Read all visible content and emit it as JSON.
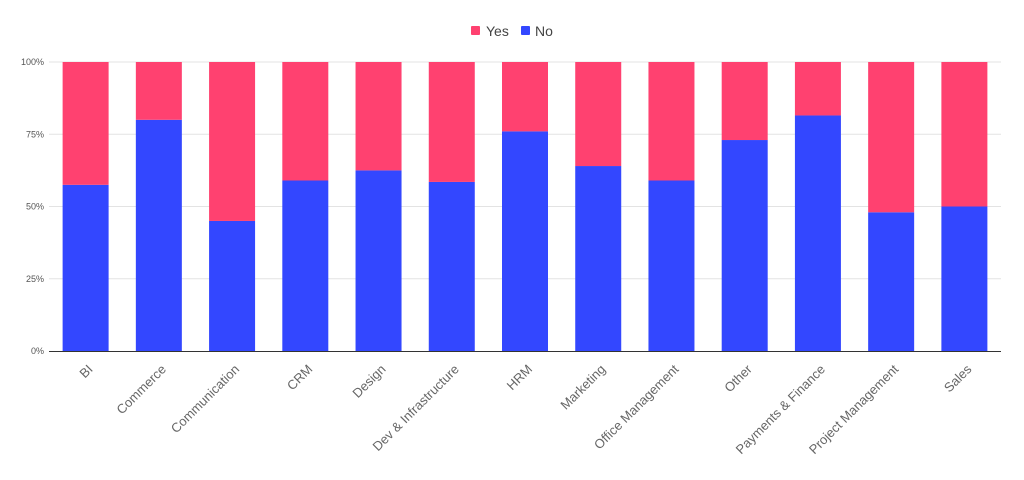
{
  "chart_data": {
    "type": "bar",
    "stacked": true,
    "normalized": true,
    "categories": [
      "BI",
      "Commerce",
      "Communication",
      "CRM",
      "Design",
      "Dev & Infrastructure",
      "HRM",
      "Marketing",
      "Office Management",
      "Other",
      "Payments & Finance",
      "Project Management",
      "Sales"
    ],
    "series": [
      {
        "name": "No",
        "color": "#3347ff",
        "values": [
          57.5,
          80,
          45,
          59,
          62.5,
          58.5,
          76,
          64,
          59,
          73,
          81.5,
          48,
          50
        ]
      },
      {
        "name": "Yes",
        "color": "#ff4170",
        "values": [
          42.5,
          20,
          55,
          41,
          37.5,
          41.5,
          24,
          36,
          41,
          27,
          18.5,
          52,
          50
        ]
      }
    ],
    "legend": {
      "position": "top",
      "items": [
        "Yes",
        "No"
      ]
    },
    "y_ticks": [
      "0%",
      "25%",
      "50%",
      "75%",
      "100%"
    ],
    "ylim": [
      0,
      100
    ],
    "grid": true,
    "title": "",
    "xlabel": "",
    "ylabel": ""
  }
}
